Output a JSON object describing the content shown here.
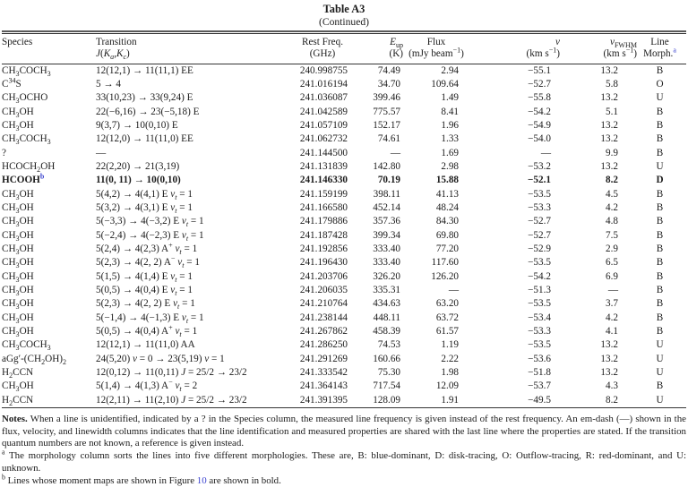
{
  "colors": {
    "link": "#3b43cf",
    "text": "#1b1b1b"
  },
  "title": "Table A3",
  "subtitle": "(Continued)",
  "table": {
    "headers": [
      {
        "l1": "Species",
        "l2": ""
      },
      {
        "l1": "Transition",
        "l2": "<i>J</i>(<i>K</i><sub><i>a</i></sub>,<i>K</i><sub><i>c</i></sub>)"
      },
      {
        "l1": "Rest Freq.",
        "l2": "(GHz)"
      },
      {
        "l1": "<i>E</i><sub>up</sub>",
        "l2": "(K)"
      },
      {
        "l1": "Flux",
        "l2": "(mJy beam<sup>−1</sup>)"
      },
      {
        "l1": "<i>v</i>",
        "l2": "(km s<sup>−1</sup>)"
      },
      {
        "l1": "<i>v</i><sub>FWHM</sub>",
        "l2": "(km s<sup>−1</sup>)"
      },
      {
        "l1": "Line",
        "l2": "Morph.<sup class=\"fnlink\" data-name=\"footnote-a-link\" data-interactable=\"true\">a</sup>"
      }
    ],
    "rows": [
      {
        "species": "CH<sub>3</sub>COCH<sub>3</sub>",
        "transition": "12(12,1) → 11(11,1) EE",
        "freq": "240.998755",
        "eup": "74.49",
        "flux": "2.94",
        "v": "−55.1",
        "vfwhm": "13.2",
        "morph": "B",
        "bold": false
      },
      {
        "species": "C<sup>34</sup>S",
        "transition": "5 → 4",
        "freq": "241.016194",
        "eup": "34.70",
        "flux": "109.64",
        "v": "−52.7",
        "vfwhm": "5.8",
        "morph": "O",
        "bold": false
      },
      {
        "species": "CH<sub>3</sub>OCHO",
        "transition": "33(10,23) → 33(9,24) E",
        "freq": "241.036087",
        "eup": "399.46",
        "flux": "1.49",
        "v": "−55.8",
        "vfwhm": "13.2",
        "morph": "U",
        "bold": false
      },
      {
        "species": "CH<sub>3</sub>OH",
        "transition": "22(−6,16) → 23(−5,18) E",
        "freq": "241.042589",
        "eup": "775.57",
        "flux": "8.41",
        "v": "−54.2",
        "vfwhm": "5.1",
        "morph": "B",
        "bold": false
      },
      {
        "species": "CH<sub>3</sub>OH",
        "transition": "9(3,7) → 10(0,10) E",
        "freq": "241.057109",
        "eup": "152.17",
        "flux": "1.96",
        "v": "−54.9",
        "vfwhm": "13.2",
        "morph": "B",
        "bold": false
      },
      {
        "species": "CH<sub>3</sub>COCH<sub>3</sub>",
        "transition": "12(12,0) → 11(11,0) EE",
        "freq": "241.062732",
        "eup": "74.61",
        "flux": "1.33",
        "v": "−54.0",
        "vfwhm": "13.2",
        "morph": "B",
        "bold": false
      },
      {
        "species": "?",
        "transition": "—",
        "freq": "241.144500",
        "eup": "—",
        "flux": "1.69",
        "v": "—",
        "vfwhm": "9.9",
        "morph": "B",
        "bold": false
      },
      {
        "species": "HCOCH<sub>2</sub>OH",
        "transition": "22(2,20) → 21(3,19)",
        "freq": "241.131839",
        "eup": "142.80",
        "flux": "2.98",
        "v": "−53.2",
        "vfwhm": "13.2",
        "morph": "U",
        "bold": false
      },
      {
        "species": "HCOOH<sup class=\"fnlink\" data-name=\"footnote-b-link\" data-interactable=\"true\">b</sup>",
        "transition": "11(0, 11) → 10(0,10)",
        "freq": "241.146330",
        "eup": "70.19",
        "flux": "15.88",
        "v": "−52.1",
        "vfwhm": "8.2",
        "morph": "D",
        "bold": true
      },
      {
        "species": "CH<sub>3</sub>OH",
        "transition": "5(4,2) → 4(4,1) E <i>v<sub>t</sub></i> = 1",
        "freq": "241.159199",
        "eup": "398.11",
        "flux": "41.13",
        "v": "−53.5",
        "vfwhm": "4.5",
        "morph": "B",
        "bold": false
      },
      {
        "species": "CH<sub>3</sub>OH",
        "transition": "5(3,2) → 4(3,1) E <i>v<sub>t</sub></i> = 1",
        "freq": "241.166580",
        "eup": "452.14",
        "flux": "48.24",
        "v": "−53.3",
        "vfwhm": "4.2",
        "morph": "B",
        "bold": false
      },
      {
        "species": "CH<sub>3</sub>OH",
        "transition": "5(−3,3) → 4(−3,2) E <i>v<sub>t</sub></i> = 1",
        "freq": "241.179886",
        "eup": "357.36",
        "flux": "84.30",
        "v": "−52.7",
        "vfwhm": "4.8",
        "morph": "B",
        "bold": false
      },
      {
        "species": "CH<sub>3</sub>OH",
        "transition": "5(−2,4) → 4(−2,3) E <i>v<sub>t</sub></i> = 1",
        "freq": "241.187428",
        "eup": "399.34",
        "flux": "69.80",
        "v": "−52.7",
        "vfwhm": "7.5",
        "morph": "B",
        "bold": false
      },
      {
        "species": "CH<sub>3</sub>OH",
        "transition": "5(2,4) → 4(2,3) A<sup>+</sup> <i>v<sub>t</sub></i> = 1",
        "freq": "241.192856",
        "eup": "333.40",
        "flux": "77.20",
        "v": "−52.9",
        "vfwhm": "2.9",
        "morph": "B",
        "bold": false
      },
      {
        "species": "CH<sub>3</sub>OH",
        "transition": "5(2,3) → 4(2, 2) A<sup>−</sup> <i>v<sub>t</sub></i> = 1",
        "freq": "241.196430",
        "eup": "333.40",
        "flux": "117.60",
        "v": "−53.5",
        "vfwhm": "6.5",
        "morph": "B",
        "bold": false
      },
      {
        "species": "CH<sub>3</sub>OH",
        "transition": "5(1,5) → 4(1,4) E <i>v<sub>t</sub></i> = 1",
        "freq": "241.203706",
        "eup": "326.20",
        "flux": "126.20",
        "v": "−54.2",
        "vfwhm": "6.9",
        "morph": "B",
        "bold": false
      },
      {
        "species": "CH<sub>3</sub>OH",
        "transition": "5(0,5) → 4(0,4) E <i>v<sub>t</sub></i> = 1",
        "freq": "241.206035",
        "eup": "335.31",
        "flux": "—",
        "v": "−51.3",
        "vfwhm": "—",
        "morph": "B",
        "bold": false
      },
      {
        "species": "CH<sub>3</sub>OH",
        "transition": "5(2,3) → 4(2, 2) E <i>v<sub>t</sub></i> = 1",
        "freq": "241.210764",
        "eup": "434.63",
        "flux": "63.20",
        "v": "−53.5",
        "vfwhm": "3.7",
        "morph": "B",
        "bold": false
      },
      {
        "species": "CH<sub>3</sub>OH",
        "transition": "5(−1,4) → 4(−1,3) E <i>v<sub>t</sub></i> = 1",
        "freq": "241.238144",
        "eup": "448.11",
        "flux": "63.72",
        "v": "−53.4",
        "vfwhm": "4.2",
        "morph": "B",
        "bold": false
      },
      {
        "species": "CH<sub>3</sub>OH",
        "transition": "5(0,5) → 4(0,4) A<sup>+</sup> <i>v<sub>t</sub></i> = 1",
        "freq": "241.267862",
        "eup": "458.39",
        "flux": "61.57",
        "v": "−53.3",
        "vfwhm": "4.1",
        "morph": "B",
        "bold": false
      },
      {
        "species": "CH<sub>3</sub>COCH<sub>3</sub>",
        "transition": "12(12,1) → 11(11,0) AA",
        "freq": "241.286250",
        "eup": "74.53",
        "flux": "1.19",
        "v": "−53.5",
        "vfwhm": "13.2",
        "morph": "U",
        "bold": false
      },
      {
        "species": "aGg′-(CH<sub>2</sub>OH)<sub>2</sub>",
        "transition": "24(5,20) <i>v</i> = 0 → 23(5,19) <i>v</i> = 1",
        "freq": "241.291269",
        "eup": "160.66",
        "flux": "2.22",
        "v": "−53.6",
        "vfwhm": "13.2",
        "morph": "U",
        "bold": false
      },
      {
        "species": "H<sub>2</sub>CCN",
        "transition": "12(0,12) → 11(0,11) <i>J</i> = 25/2 → 23/2",
        "freq": "241.333542",
        "eup": "75.30",
        "flux": "1.98",
        "v": "−51.8",
        "vfwhm": "13.2",
        "morph": "U",
        "bold": false
      },
      {
        "species": "CH<sub>3</sub>OH",
        "transition": "5(1,4) → 4(1,3) A<sup>−</sup> <i>v<sub>t</sub></i> = 2",
        "freq": "241.364143",
        "eup": "717.54",
        "flux": "12.09",
        "v": "−53.7",
        "vfwhm": "4.3",
        "morph": "B",
        "bold": false
      },
      {
        "species": "H<sub>2</sub>CCN",
        "transition": "12(2,11) → 11(2,10) <i>J</i> = 25/2 → 23/2",
        "freq": "241.391395",
        "eup": "128.09",
        "flux": "1.91",
        "v": "−49.5",
        "vfwhm": "8.2",
        "morph": "U",
        "bold": false
      }
    ]
  },
  "notes": {
    "main_html": "<b>Notes.</b> When a line is unidentified, indicated by a ? in the Species column, the measured line frequency is given instead of the rest frequency. An em-dash (—) shown in the flux, velocity, and linewidth columns indicates that the line identification and measured properties are shared with the last line where the properties are stated. If the transition quantum numbers are not known, a reference is given instead.",
    "footnote_a_html": "<sup data-name=\"footnote-a-marker\" data-interactable=\"false\">a</sup> The morphology column sorts the lines into five different morphologies. These are, B: blue-dominant, D: disk-tracing, O: Outflow-tracing, R: red-dominant, and U: unknown.",
    "footnote_b_html": "<sup data-name=\"footnote-b-marker\" data-interactable=\"false\">b</sup> Lines whose moment maps are shown in Figure <span class=\"fnlink\" data-name=\"figure-10-link\" data-interactable=\"true\">10</span> are shown in bold."
  }
}
